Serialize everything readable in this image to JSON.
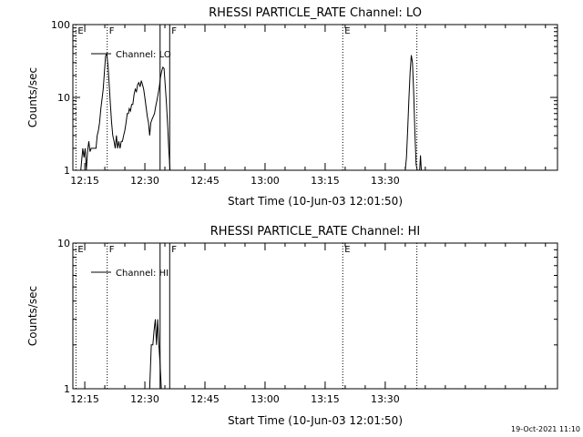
{
  "chart_data": [
    {
      "type": "line",
      "title": "RHESSI PARTICLE_RATE Channel: LO",
      "xlabel": "Start Time (10-Jun-03 12:01:50)",
      "ylabel": "Counts/sec",
      "yscale": "log",
      "ylim": [
        1,
        100
      ],
      "xlim_minutes": [
        12.03,
        133.0
      ],
      "yticks": [
        {
          "value": 1,
          "label": "1"
        },
        {
          "value": 10,
          "label": "10"
        },
        {
          "value": 100,
          "label": "100"
        }
      ],
      "xticks": [
        {
          "minute": 15,
          "label": "12:15"
        },
        {
          "minute": 30,
          "label": "12:30"
        },
        {
          "minute": 45,
          "label": "12:45"
        },
        {
          "minute": 60,
          "label": "13:00"
        },
        {
          "minute": 75,
          "label": "13:15"
        },
        {
          "minute": 90,
          "label": "13:30"
        }
      ],
      "legend": {
        "label": "Channel: LO",
        "placement": "top-left"
      },
      "markers": [
        {
          "minute": 12.8,
          "label": "E",
          "style": "dotted"
        },
        {
          "minute": 20.6,
          "label": "F",
          "style": "dotted"
        },
        {
          "minute": 33.8,
          "label": "",
          "style": "solid"
        },
        {
          "minute": 36.2,
          "label": "F",
          "style": "solid"
        },
        {
          "minute": 79.4,
          "label": "E",
          "style": "dotted"
        },
        {
          "minute": 97.9,
          "label": "",
          "style": "dotted"
        }
      ],
      "series": [
        {
          "segments": [
            [
              [
                14.0,
                0.9
              ],
              [
                14.2,
                1.3
              ],
              [
                14.5,
                2.0
              ],
              [
                14.8,
                1.5
              ],
              [
                15.1,
                2.0
              ],
              [
                15.4,
                1.0
              ],
              [
                15.7,
                1.8
              ],
              [
                16.0,
                2.5
              ],
              [
                16.3,
                1.8
              ],
              [
                16.6,
                2.0
              ],
              [
                17.0,
                2.0
              ],
              [
                17.4,
                2.0
              ],
              [
                17.8,
                2.0
              ],
              [
                18.1,
                3.0
              ],
              [
                18.4,
                3.5
              ],
              [
                18.7,
                4.5
              ],
              [
                19.0,
                7.0
              ],
              [
                19.3,
                9.5
              ],
              [
                19.6,
                13.0
              ],
              [
                19.9,
                22.0
              ],
              [
                20.2,
                37.0
              ],
              [
                20.5,
                40.0
              ],
              [
                20.8,
                27.0
              ],
              [
                21.1,
                15.0
              ],
              [
                21.4,
                8.0
              ],
              [
                21.7,
                4.5
              ],
              [
                22.0,
                3.0
              ],
              [
                22.3,
                2.5
              ],
              [
                22.6,
                2.0
              ],
              [
                22.9,
                3.0
              ],
              [
                23.2,
                2.0
              ],
              [
                23.5,
                2.5
              ],
              [
                23.8,
                2.0
              ],
              [
                24.1,
                2.5
              ],
              [
                24.4,
                2.5
              ],
              [
                24.7,
                3.0
              ],
              [
                25.0,
                3.5
              ],
              [
                25.3,
                4.5
              ],
              [
                25.6,
                6.0
              ],
              [
                25.9,
                6.0
              ],
              [
                26.1,
                7.0
              ],
              [
                26.4,
                6.5
              ],
              [
                26.7,
                8.0
              ],
              [
                27.0,
                8.0
              ],
              [
                27.3,
                11.0
              ],
              [
                27.6,
                13.0
              ],
              [
                27.9,
                12.0
              ],
              [
                28.2,
                15.0
              ],
              [
                28.5,
                16.0
              ],
              [
                28.8,
                14.0
              ],
              [
                29.1,
                17.0
              ],
              [
                29.4,
                15.0
              ],
              [
                29.7,
                13.0
              ],
              [
                30.0,
                10.0
              ],
              [
                30.3,
                7.5
              ],
              [
                30.6,
                5.5
              ],
              [
                30.9,
                4.5
              ],
              [
                31.2,
                3.0
              ],
              [
                31.5,
                4.5
              ],
              [
                31.8,
                5.0
              ],
              [
                32.1,
                5.5
              ],
              [
                32.4,
                6.0
              ],
              [
                32.7,
                7.5
              ],
              [
                33.0,
                9.0
              ],
              [
                33.3,
                11.0
              ],
              [
                33.6,
                14.0
              ],
              [
                33.9,
                19.0
              ],
              [
                34.2,
                23.0
              ],
              [
                34.5,
                26.0
              ],
              [
                34.8,
                25.0
              ],
              [
                35.1,
                14.0
              ],
              [
                35.4,
                8.0
              ],
              [
                35.7,
                4.0
              ],
              [
                36.0,
                1.8
              ],
              [
                36.3,
                0.9
              ]
            ],
            [
              [
                95.0,
                0.9
              ],
              [
                95.3,
                1.5
              ],
              [
                95.6,
                3.5
              ],
              [
                95.9,
                9.0
              ],
              [
                96.2,
                22.0
              ],
              [
                96.5,
                38.0
              ],
              [
                96.8,
                30.0
              ],
              [
                97.1,
                12.0
              ],
              [
                97.4,
                3.5
              ],
              [
                97.7,
                1.2
              ],
              [
                98.0,
                0.9
              ]
            ],
            [
              [
                98.6,
                1.0
              ],
              [
                98.8,
                1.6
              ],
              [
                99.0,
                1.0
              ]
            ]
          ]
        }
      ]
    },
    {
      "type": "line",
      "title": "RHESSI PARTICLE_RATE Channel: HI",
      "xlabel": "Start Time (10-Jun-03 12:01:50)",
      "ylabel": "Counts/sec",
      "yscale": "log",
      "ylim": [
        1,
        10
      ],
      "xlim_minutes": [
        12.03,
        133.0
      ],
      "yticks": [
        {
          "value": 1,
          "label": "1"
        },
        {
          "value": 10,
          "label": "10"
        }
      ],
      "xticks": [
        {
          "minute": 15,
          "label": "12:15"
        },
        {
          "minute": 30,
          "label": "12:30"
        },
        {
          "minute": 45,
          "label": "12:45"
        },
        {
          "minute": 60,
          "label": "13:00"
        },
        {
          "minute": 75,
          "label": "13:15"
        },
        {
          "minute": 90,
          "label": "13:30"
        }
      ],
      "legend": {
        "label": "Channel: HI",
        "placement": "top-left"
      },
      "markers": [
        {
          "minute": 12.8,
          "label": "E",
          "style": "dotted"
        },
        {
          "minute": 20.6,
          "label": "F",
          "style": "dotted"
        },
        {
          "minute": 33.8,
          "label": "",
          "style": "solid"
        },
        {
          "minute": 36.2,
          "label": "F",
          "style": "solid"
        },
        {
          "minute": 79.4,
          "label": "E",
          "style": "dotted"
        },
        {
          "minute": 97.9,
          "label": "",
          "style": "dotted"
        }
      ],
      "series": [
        {
          "segments": [
            [
              [
                31.2,
                0.9
              ],
              [
                31.6,
                2.0
              ],
              [
                32.0,
                2.0
              ],
              [
                32.3,
                2.5
              ],
              [
                32.6,
                3.0
              ],
              [
                32.9,
                2.0
              ],
              [
                33.2,
                3.0
              ],
              [
                33.5,
                2.0
              ],
              [
                33.8,
                1.5
              ],
              [
                34.1,
                0.9
              ]
            ]
          ]
        }
      ]
    }
  ],
  "footer": {
    "timestamp": "19-Oct-2021 11:10"
  }
}
